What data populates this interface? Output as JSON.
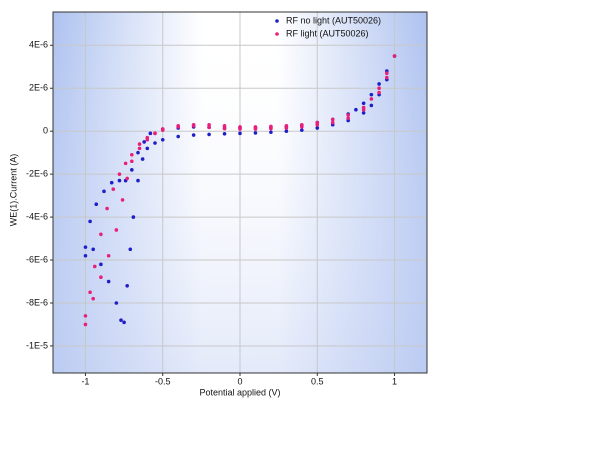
{
  "chart_data": {
    "type": "scatter",
    "x_label": "Potential applied (V)",
    "y_label": "WE(1).Current (A)",
    "xlim": [
      -1.21,
      1.21
    ],
    "ylim": [
      -1.126e-05,
      5.55e-06
    ],
    "xticks": [
      -1,
      -0.5,
      0,
      0.5,
      1
    ],
    "yticks": [
      {
        "value": 4e-06,
        "label": "4E-6"
      },
      {
        "value": 2e-06,
        "label": "2E-6"
      },
      0,
      {
        "value": -2e-06,
        "label": "-2E-6"
      },
      {
        "value": -4e-06,
        "label": "-4E-6"
      },
      {
        "value": -6e-06,
        "label": "-6E-6"
      },
      {
        "value": -8e-06,
        "label": "-8E-6"
      },
      {
        "value": -1e-05,
        "label": "-1E-5"
      }
    ],
    "grid": true,
    "legend": "upper-right",
    "series": [
      {
        "name": "RF no light (AUT50026)",
        "color": "#1f1fc8",
        "x": [
          -1,
          -0.97,
          -0.93,
          -0.88,
          -0.83,
          -0.78,
          -0.74,
          -0.7,
          -0.66,
          -0.62,
          -0.58,
          -0.5,
          -0.4,
          -0.3,
          -0.2,
          -0.1,
          0,
          0.1,
          0.2,
          0.3,
          0.4,
          0.5,
          0.6,
          0.7,
          0.75,
          0.8,
          0.85,
          0.9,
          0.95,
          1,
          0.95,
          0.9,
          0.85,
          0.8,
          0.7,
          0.6,
          0.5,
          0.4,
          0.3,
          0.2,
          0.1,
          0,
          -0.1,
          -0.2,
          -0.3,
          -0.4,
          -0.5,
          -0.55,
          -0.6,
          -0.63,
          -0.66,
          -0.69,
          -0.71,
          -0.73,
          -0.75,
          -0.77,
          -0.8,
          -0.85,
          -0.9,
          -0.95,
          -1
        ],
        "values": [
          -5.8e-06,
          -4.2e-06,
          -3.4e-06,
          -2.8e-06,
          -2.4e-06,
          -2.3e-06,
          -2.3e-06,
          -1.8e-06,
          -1e-06,
          -5e-07,
          -1e-07,
          1e-07,
          1.5e-07,
          2e-07,
          1.8e-07,
          1.5e-07,
          1.5e-07,
          1.5e-07,
          1.8e-07,
          2e-07,
          2.8e-07,
          4e-07,
          5.5e-07,
          8e-07,
          1e-06,
          1.3e-06,
          1.7e-06,
          2.2e-06,
          2.8e-06,
          3.5e-06,
          2.4e-06,
          1.7e-06,
          1.2e-06,
          8.5e-07,
          5e-07,
          3e-07,
          1.5e-07,
          5e-08,
          0,
          -5e-08,
          -8e-08,
          -1e-07,
          -1.2e-07,
          -1.5e-07,
          -1.8e-07,
          -2.5e-07,
          -4e-07,
          -5.5e-07,
          -8e-07,
          -1.3e-06,
          -2.3e-06,
          -4e-06,
          -5.5e-06,
          -7.2e-06,
          -8.9e-06,
          -8.8e-06,
          -8e-06,
          -7e-06,
          -6.2e-06,
          -5.5e-06,
          -5.4e-06
        ]
      },
      {
        "name": "RF light (AUT50026)",
        "color": "#e8207a",
        "x": [
          -1,
          -0.97,
          -0.94,
          -0.9,
          -0.86,
          -0.82,
          -0.78,
          -0.74,
          -0.7,
          -0.65,
          -0.6,
          -0.55,
          -0.5,
          -0.4,
          -0.3,
          -0.2,
          -0.1,
          0,
          0.1,
          0.2,
          0.3,
          0.4,
          0.5,
          0.6,
          0.7,
          0.8,
          0.85,
          0.9,
          0.95,
          1,
          0.95,
          0.9,
          0.8,
          0.7,
          0.6,
          0.5,
          0.4,
          0.3,
          0.2,
          0.1,
          0,
          -0.1,
          -0.2,
          -0.3,
          -0.4,
          -0.5,
          -0.55,
          -0.6,
          -0.65,
          -0.7,
          -0.73,
          -0.76,
          -0.8,
          -0.85,
          -0.9,
          -0.95,
          -1
        ],
        "values": [
          -9e-06,
          -7.5e-06,
          -6.3e-06,
          -4.8e-06,
          -3.6e-06,
          -2.7e-06,
          -2e-06,
          -1.5e-06,
          -1.1e-06,
          -6e-07,
          -3e-07,
          -1e-07,
          5e-08,
          2e-07,
          3e-07,
          3e-07,
          2.5e-07,
          2e-07,
          2e-07,
          2.2e-07,
          2.5e-07,
          3e-07,
          4e-07,
          5.5e-07,
          7.5e-07,
          1.1e-06,
          1.5e-06,
          2e-06,
          2.7e-06,
          3.5e-06,
          2.5e-06,
          1.8e-06,
          1e-06,
          6e-07,
          4e-07,
          3e-07,
          2e-07,
          1.5e-07,
          1.2e-07,
          1e-07,
          1e-07,
          1.2e-07,
          1.8e-07,
          2.5e-07,
          2.5e-07,
          1e-07,
          -1e-07,
          -4e-07,
          -8e-07,
          -1.4e-06,
          -2.2e-06,
          -3.2e-06,
          -4.6e-06,
          -5.8e-06,
          -6.8e-06,
          -7.8e-06,
          -8.6e-06
        ]
      }
    ]
  }
}
